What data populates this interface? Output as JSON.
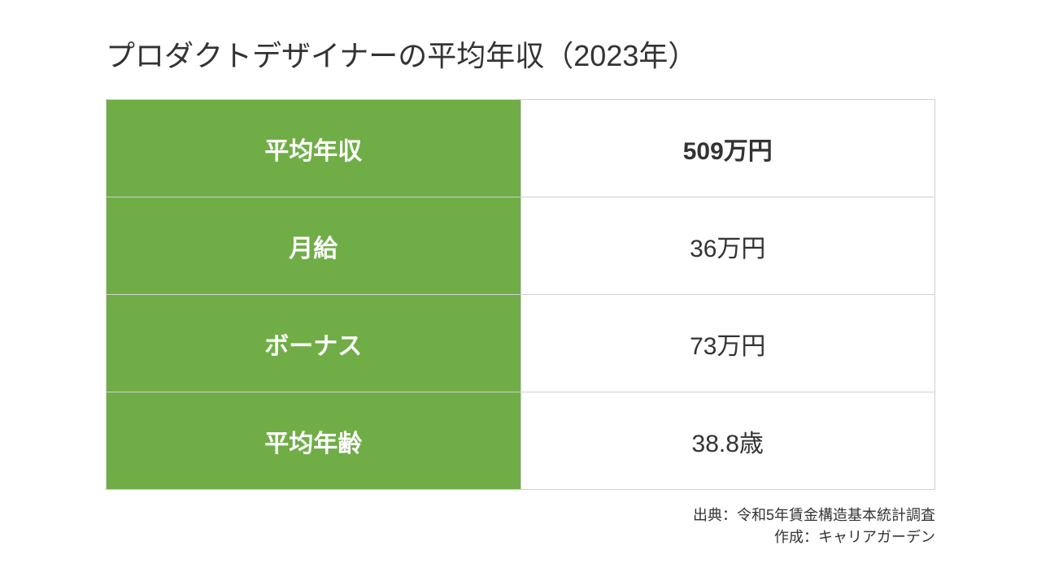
{
  "title": "プロダクトデザイナーの平均年収（2023年）",
  "table": {
    "label_bg": "#70ad47",
    "label_color": "#ffffff",
    "value_bg": "#ffffff",
    "value_color": "#333333",
    "border_color": "#d0d0d0",
    "rows": [
      {
        "label": "平均年収",
        "value": "509万円",
        "bold": true
      },
      {
        "label": "月給",
        "value": "36万円",
        "bold": false
      },
      {
        "label": "ボーナス",
        "value": "73万円",
        "bold": false
      },
      {
        "label": "平均年齢",
        "value": "38.8歳",
        "bold": false
      }
    ]
  },
  "footer": {
    "source": "出典：令和5年賃金構造基本統計調査",
    "author": "作成：キャリアガーデン"
  }
}
